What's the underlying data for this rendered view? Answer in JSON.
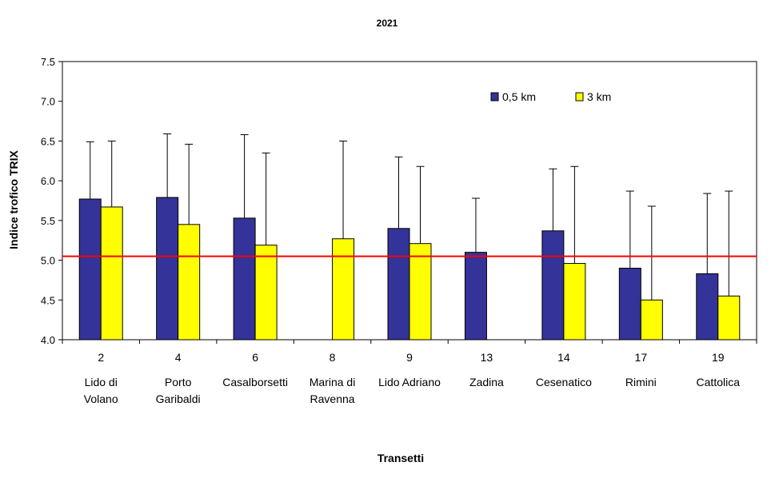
{
  "chart_data": {
    "type": "bar",
    "title": "2021",
    "xlabel": "Transetti",
    "ylabel": "Indice trofico TRIX",
    "ylim": [
      4.0,
      7.5
    ],
    "yticks": [
      "4.0",
      "4.5",
      "5.0",
      "5.5",
      "6.0",
      "6.5",
      "7.0",
      "7.5"
    ],
    "categories": [
      "2",
      "4",
      "6",
      "8",
      "9",
      "13",
      "14",
      "17",
      "19"
    ],
    "category_names": [
      [
        "Lido di",
        "Volano"
      ],
      [
        "Porto",
        "Garibaldi"
      ],
      [
        "Casalborsetti"
      ],
      [
        "Marina di",
        "Ravenna"
      ],
      [
        "Lido Adriano"
      ],
      [
        "Zadina"
      ],
      [
        "Cesenatico"
      ],
      [
        "Rimini"
      ],
      [
        "Cattolica"
      ]
    ],
    "series": [
      {
        "name": "0,5 km",
        "color": "#333399",
        "values": [
          5.77,
          5.79,
          5.53,
          null,
          5.4,
          5.1,
          5.37,
          4.9,
          4.83
        ],
        "error_upper": [
          6.49,
          6.59,
          6.58,
          null,
          6.3,
          5.78,
          6.15,
          5.87,
          5.84
        ]
      },
      {
        "name": "3 km",
        "color": "#ffff00",
        "values": [
          5.67,
          5.45,
          5.19,
          5.27,
          5.21,
          null,
          4.96,
          4.5,
          4.55
        ],
        "error_upper": [
          6.5,
          6.46,
          6.35,
          6.5,
          6.18,
          null,
          6.18,
          5.68,
          5.87
        ]
      }
    ],
    "reference_line": {
      "value": 5.05,
      "color": "#ff0000"
    },
    "legend_position": "top-right",
    "grid": false
  }
}
